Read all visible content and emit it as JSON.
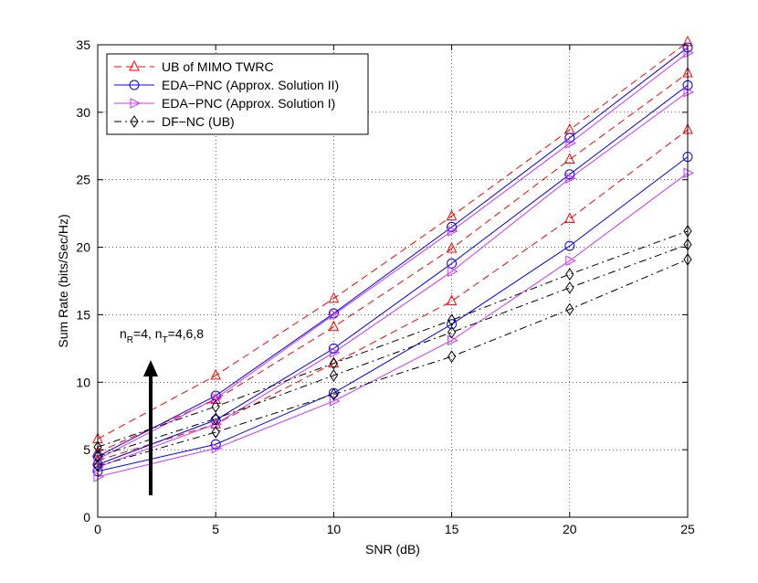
{
  "chart_data": {
    "type": "line",
    "title": "",
    "xlabel": "SNR (dB)",
    "ylabel": "Sum Rate (bits/Sec/Hz)",
    "xlim": [
      0,
      25
    ],
    "ylim": [
      0,
      35
    ],
    "xticks": [
      0,
      5,
      10,
      15,
      20,
      25
    ],
    "yticks": [
      0,
      5,
      10,
      15,
      20,
      25,
      30,
      35
    ],
    "grid": true,
    "legend_position": "top-left",
    "annotation": {
      "prefix": "n",
      "sub1": "R",
      "mid": "=4, n",
      "sub2": "T",
      "suffix": "=4,6,8"
    },
    "x": [
      0,
      5,
      10,
      15,
      20,
      25
    ],
    "series": [
      {
        "name": "UB of MIMO TWRC",
        "color": "#ff0000",
        "dash": "dashed",
        "marker": "triangle-up",
        "values": [
          5.8,
          10.5,
          16.2,
          22.3,
          28.7,
          35.2
        ]
      },
      {
        "name": "UB of MIMO TWRC",
        "color": "#ff0000",
        "dash": "dashed",
        "marker": "triangle-up",
        "values": [
          4.8,
          8.7,
          14.1,
          19.9,
          26.5,
          32.9
        ]
      },
      {
        "name": "UB of MIMO TWRC",
        "color": "#ff0000",
        "dash": "dashed",
        "marker": "triangle-up",
        "values": [
          4.2,
          6.9,
          11.4,
          16.0,
          22.1,
          28.7
        ]
      },
      {
        "name": "EDA-PNC (Approx. Solution II)",
        "color": "#0000ff",
        "dash": "solid",
        "marker": "circle",
        "values": [
          4.5,
          9.0,
          15.1,
          21.5,
          28.1,
          34.8
        ]
      },
      {
        "name": "EDA-PNC (Approx. Solution II)",
        "color": "#0000ff",
        "dash": "solid",
        "marker": "circle",
        "values": [
          3.9,
          7.2,
          12.5,
          18.8,
          25.4,
          32.0
        ]
      },
      {
        "name": "EDA-PNC (Approx. Solution II)",
        "color": "#0000ff",
        "dash": "solid",
        "marker": "circle",
        "values": [
          3.4,
          5.4,
          9.2,
          14.3,
          20.1,
          26.7
        ]
      },
      {
        "name": "EDA-PNC (Approx. Solution I)",
        "color": "#cc33ff",
        "dash": "solid",
        "marker": "triangle-right",
        "values": [
          4.3,
          8.8,
          15.0,
          21.2,
          27.7,
          34.4
        ]
      },
      {
        "name": "EDA-PNC (Approx. Solution I)",
        "color": "#cc33ff",
        "dash": "solid",
        "marker": "triangle-right",
        "values": [
          3.7,
          6.9,
          12.2,
          18.2,
          25.1,
          31.5
        ]
      },
      {
        "name": "EDA-PNC (Approx. Solution I)",
        "color": "#cc33ff",
        "dash": "solid",
        "marker": "triangle-right",
        "values": [
          3.0,
          5.1,
          8.6,
          13.1,
          19.0,
          25.5
        ]
      },
      {
        "name": "DF-NC (UB)",
        "color": "#000000",
        "dash": "dashdot",
        "marker": "diamond",
        "values": [
          5.2,
          8.2,
          11.4,
          14.6,
          18.0,
          21.2
        ]
      },
      {
        "name": "DF-NC (UB)",
        "color": "#000000",
        "dash": "dashdot",
        "marker": "diamond",
        "values": [
          4.5,
          7.3,
          10.5,
          13.7,
          17.0,
          20.2
        ]
      },
      {
        "name": "DF-NC (UB)",
        "color": "#000000",
        "dash": "dashdot",
        "marker": "diamond",
        "values": [
          3.8,
          6.3,
          9.1,
          11.9,
          15.4,
          19.1
        ]
      }
    ],
    "legend": [
      {
        "label": "UB of MIMO TWRC",
        "color": "#ff0000",
        "dash": "dashed",
        "marker": "triangle-up"
      },
      {
        "label": "EDA−PNC (Approx. Solution II)",
        "color": "#0000ff",
        "dash": "solid",
        "marker": "circle"
      },
      {
        "label": "EDA−PNC (Approx. Solution I)",
        "color": "#cc33ff",
        "dash": "solid",
        "marker": "triangle-right"
      },
      {
        "label": "DF−NC (UB)",
        "color": "#000000",
        "dash": "dashdot",
        "marker": "diamond"
      }
    ]
  }
}
